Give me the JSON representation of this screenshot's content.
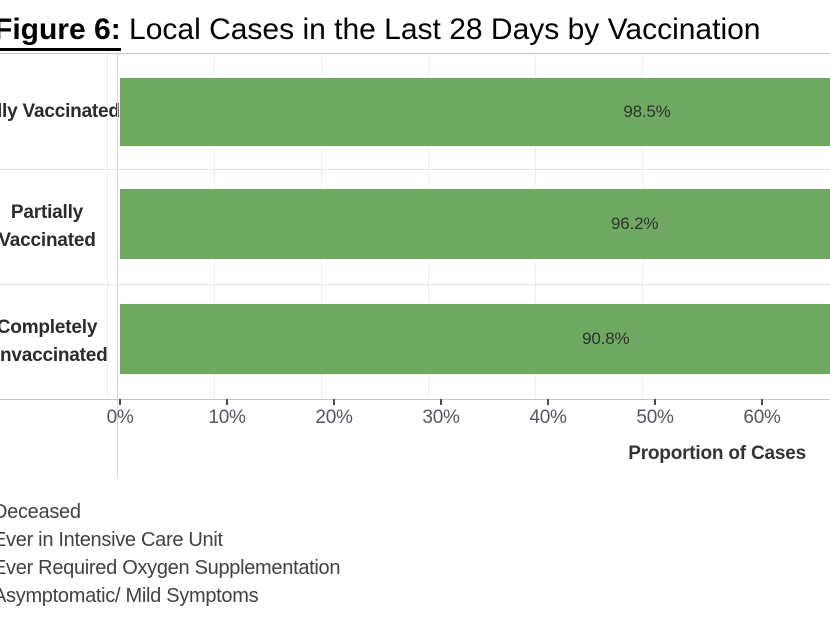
{
  "title": {
    "prefix": "Figure 6:",
    "rest": " Local Cases in the Last 28 Days by Vaccination"
  },
  "colors": {
    "bar": "#6FA961",
    "gridline": "#EDEDF0",
    "border": "#C6C6C6"
  },
  "chart_data": {
    "type": "bar",
    "orientation": "horizontal",
    "title": "Figure 6: Local Cases in the Last 28 Days by Vaccination",
    "categories": [
      "Fully Vaccinated",
      "Partially Vaccinated",
      "Completely Unvaccinated"
    ],
    "values": [
      98.5,
      96.2,
      90.8
    ],
    "value_labels": [
      "98.5%",
      "96.2%",
      "90.8%"
    ],
    "series_shown": "Asymptomatic/ Mild Symptoms",
    "xlabel": "Proportion of Cases",
    "x_ticks": [
      "0%",
      "10%",
      "20%",
      "30%",
      "40%",
      "50%",
      "60%"
    ],
    "xlim_visible": [
      0,
      66
    ],
    "xlim_full": [
      0,
      100
    ],
    "grid": true,
    "bar_color": "#6FA961",
    "legend_position": "bottom-left",
    "legend": [
      "Deceased",
      "Ever in Intensive Care Unit",
      "Ever Required Oxygen Supplementation",
      "Asymptomatic/ Mild Symptoms"
    ]
  }
}
